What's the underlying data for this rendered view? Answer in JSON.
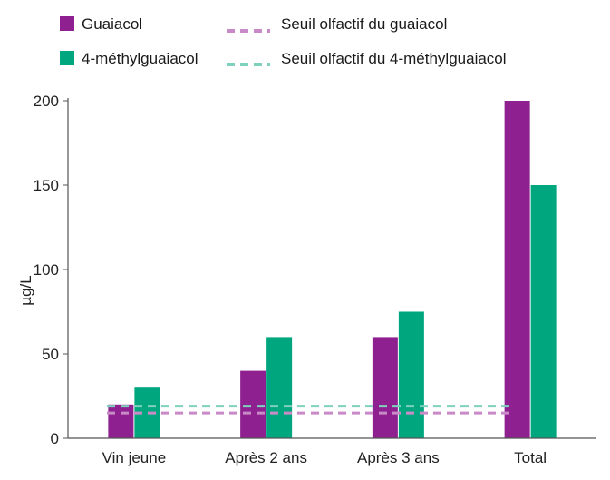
{
  "chart_data": {
    "type": "bar",
    "title": "",
    "xlabel": "",
    "ylabel": "µg/L",
    "ylim": [
      0,
      200
    ],
    "yticks": [
      0,
      50,
      100,
      150,
      200
    ],
    "grid": false,
    "categories": [
      "Vin jeune",
      "Après 2 ans",
      "Après 3 ans",
      "Total"
    ],
    "series": [
      {
        "name": "Guaiacol",
        "color": "#8e2090",
        "values": [
          20,
          40,
          60,
          200
        ]
      },
      {
        "name": "4-méthylguaiacol",
        "color": "#00a67e",
        "values": [
          30,
          60,
          75,
          150
        ]
      }
    ],
    "thresholds": [
      {
        "name": "Seuil olfactif du guaiacol",
        "color": "#c98bc7",
        "value": 15
      },
      {
        "name": "Seuil olfactif du 4-méthylguaiacol",
        "color": "#7fd0bd",
        "value": 19
      }
    ],
    "legend_position": "top"
  }
}
